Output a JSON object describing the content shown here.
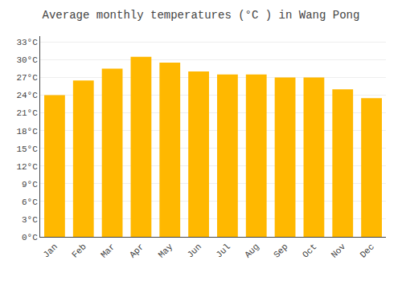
{
  "chart_data": {
    "type": "bar",
    "title": "Average monthly temperatures (°C ) in Wang Pong",
    "categories": [
      "Jan",
      "Feb",
      "Mar",
      "Apr",
      "May",
      "Jun",
      "Jul",
      "Aug",
      "Sep",
      "Oct",
      "Nov",
      "Dec"
    ],
    "values": [
      24.0,
      26.5,
      28.5,
      30.5,
      29.5,
      28.0,
      27.5,
      27.5,
      27.0,
      27.0,
      25.0,
      23.5
    ],
    "color": "#FFB800",
    "ylim": [
      0,
      34
    ],
    "yticks": [
      {
        "value": 0,
        "label": "0°C"
      },
      {
        "value": 3,
        "label": "3°C"
      },
      {
        "value": 6,
        "label": "6°C"
      },
      {
        "value": 9,
        "label": "9°C"
      },
      {
        "value": 12,
        "label": "12°C"
      },
      {
        "value": 15,
        "label": "15°C"
      },
      {
        "value": 18,
        "label": "18°C"
      },
      {
        "value": 21,
        "label": "21°C"
      },
      {
        "value": 24,
        "label": "24°C"
      },
      {
        "value": 27,
        "label": "27°C"
      },
      {
        "value": 30,
        "label": "30°C"
      },
      {
        "value": 33,
        "label": "33°C"
      }
    ],
    "grid": true
  }
}
